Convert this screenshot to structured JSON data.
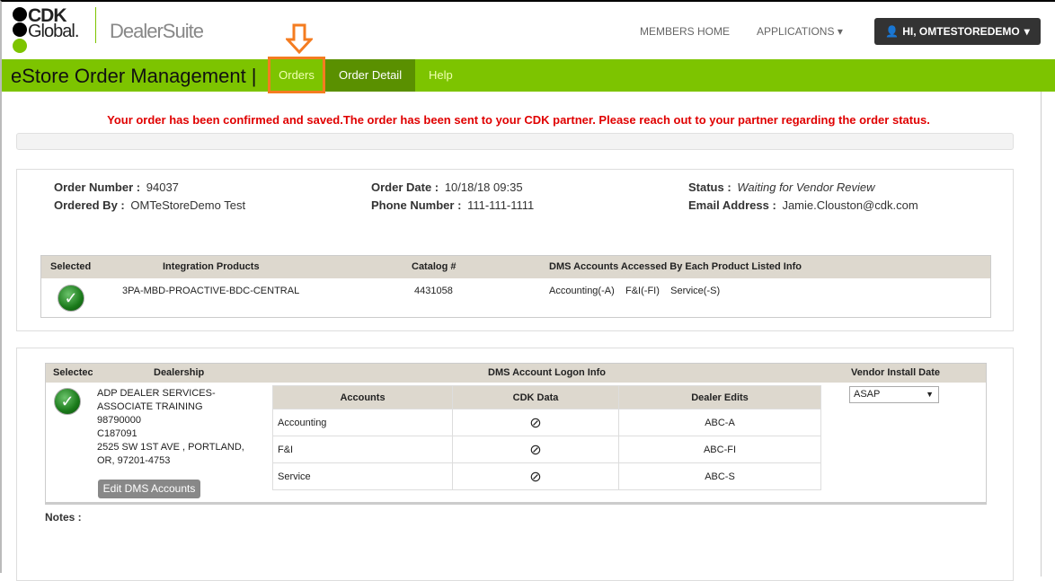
{
  "header": {
    "logo_line1": "CDK",
    "logo_line2": "Global.",
    "product": "DealerSuite",
    "members_home": "MEMBERS HOME",
    "applications": "APPLICATIONS",
    "user": "HI, OMTESTOREDEMO"
  },
  "nav": {
    "title": "eStore Order Management |",
    "tabs": [
      {
        "label": "Orders"
      },
      {
        "label": "Order Detail"
      },
      {
        "label": "Help"
      }
    ]
  },
  "message": "Your order has been confirmed and saved.The order has been sent to your CDK partner. Please reach out to your partner regarding the order status.",
  "order": {
    "number_label": "Order Number :",
    "number": "94037",
    "ordered_by_label": "Ordered By :",
    "ordered_by": "OMTeStoreDemo Test",
    "date_label": "Order Date :",
    "date": "10/18/18 09:35",
    "phone_label": "Phone Number :",
    "phone": "111-111-1111",
    "status_label": "Status :",
    "status": "Waiting for Vendor Review",
    "email_label": "Email Address :",
    "email": "Jamie.Clouston@cdk.com"
  },
  "products": {
    "headers": [
      "Selected",
      "Integration Products",
      "Catalog #",
      "DMS Accounts Accessed By Each Product Listed Info"
    ],
    "row": {
      "product": "3PA-MBD-PROACTIVE-BDC-CENTRAL",
      "catalog": "4431058",
      "accounts": [
        "Accounting(-A)",
        "F&I(-FI)",
        "Service(-S)"
      ]
    }
  },
  "dealer": {
    "headers": [
      "Selectec",
      "Dealership",
      "DMS Account Logon Info",
      "Vendor Install Date"
    ],
    "lines": [
      "ADP DEALER SERVICES-",
      "ASSOCIATE TRAINING",
      "98790000",
      "C187091",
      "2525 SW 1ST AVE  , PORTLAND,",
      "OR, 97201-4753"
    ],
    "edit_button": "Edit DMS Accounts",
    "install_date": "ASAP",
    "accounts_headers": [
      "Accounts",
      "CDK Data",
      "Dealer Edits"
    ],
    "accounts": [
      {
        "name": "Accounting",
        "edit": "ABC-A"
      },
      {
        "name": "F&I",
        "edit": "ABC-FI"
      },
      {
        "name": "Service",
        "edit": "ABC-S"
      }
    ]
  },
  "notes_label": "Notes :",
  "colors": {
    "green": "#7dc400",
    "dark_green": "#5a9000",
    "red": "#e00000",
    "orange": "#f47c20"
  }
}
